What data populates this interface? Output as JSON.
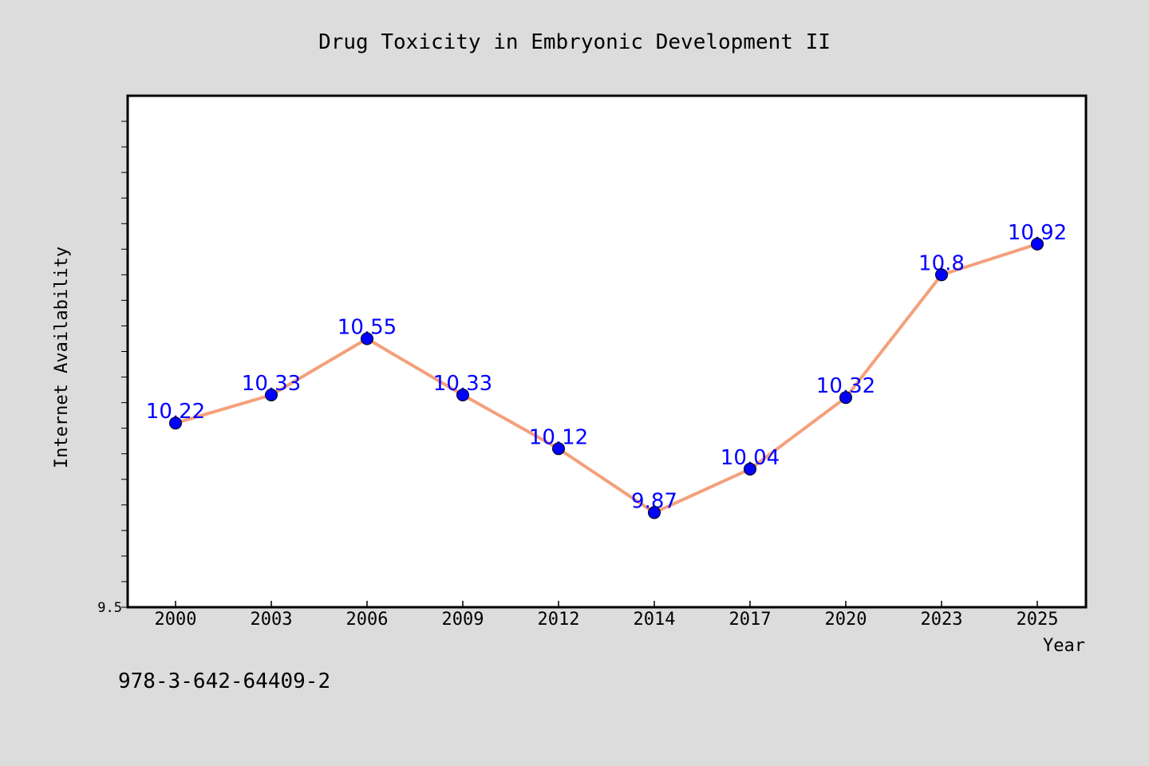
{
  "chart_data": {
    "type": "line",
    "title": "Drug Toxicity in Embryonic Development II",
    "xlabel": "Year",
    "ylabel": "Internet Availability",
    "categories": [
      "2000",
      "2003",
      "2006",
      "2009",
      "2012",
      "2014",
      "2017",
      "2020",
      "2023",
      "2025"
    ],
    "series": [
      {
        "values": [
          10.22,
          10.33,
          10.55,
          10.33,
          10.12,
          9.87,
          10.04,
          10.32,
          10.8,
          10.92
        ],
        "data_labels": [
          "10.22",
          "10.33",
          "10.55",
          "10.33",
          "10.12",
          "9.87",
          "10.04",
          "10.32",
          "10.8",
          "10.92"
        ],
        "line_color": "#f4a07c",
        "marker_color": "#0000ff"
      }
    ],
    "ylim": [
      9.5,
      11.5
    ],
    "ytick_labels": [
      "9.5"
    ],
    "grid": false,
    "legend": "none"
  },
  "footnote": "978-3-642-64409-2",
  "colors": {
    "background": "#dcdcdc",
    "plot_background": "#ffffff",
    "line": "#f4a07c",
    "marker": "#0000ff",
    "data_label": "#0000ff"
  }
}
